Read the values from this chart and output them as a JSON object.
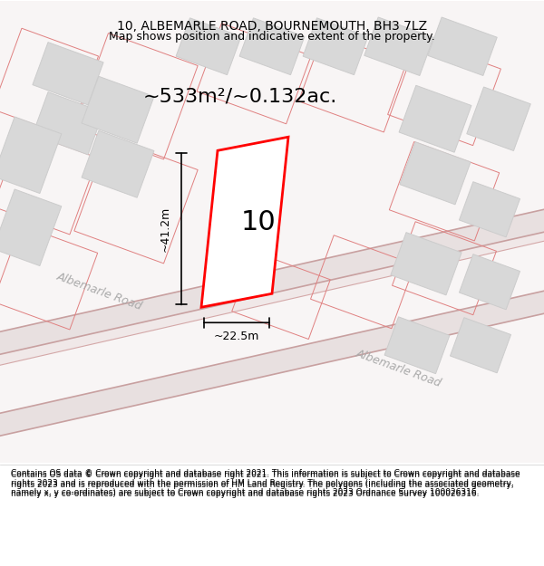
{
  "title": "10, ALBEMARLE ROAD, BOURNEMOUTH, BH3 7LZ",
  "subtitle": "Map shows position and indicative extent of the property.",
  "area_text": "~533m²/~0.132ac.",
  "label_number": "10",
  "dim_height": "~41.2m",
  "dim_width": "~22.5m",
  "road_label1": "Albemarle Road",
  "road_label2": "Albemarle Road",
  "footer": "Contains OS data © Crown copyright and database right 2021. This information is subject to Crown copyright and database rights 2023 and is reproduced with the permission of HM Land Registry. The polygons (including the associated geometry, namely x, y co-ordinates) are subject to Crown copyright and database rights 2023 Ordnance Survey 100026316.",
  "bg_color": "#ffffff",
  "road_color": "#f5f5f5",
  "road_line_color": "#e8a0a0",
  "building_fill": "#d8d8d8",
  "building_edge": "#cccccc",
  "plot_fill": "#ffffff",
  "plot_edge": "#ff0000",
  "map_bg": "#f9f6f6",
  "footer_bg": "#ffffff"
}
